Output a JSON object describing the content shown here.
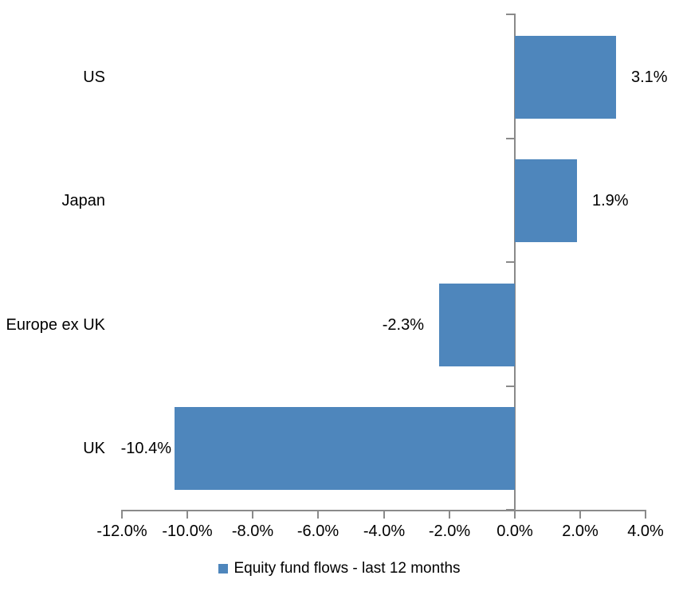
{
  "chart_data": {
    "type": "bar",
    "orientation": "horizontal",
    "title": "",
    "categories": [
      "US",
      "Japan",
      "Europe ex UK",
      "UK"
    ],
    "values": [
      3.1,
      1.9,
      -2.3,
      -10.4
    ],
    "data_labels": [
      "3.1%",
      "1.9%",
      "-2.3%",
      "-10.4%"
    ],
    "series_name": "Equity fund flows - last 12 months",
    "x_axis": {
      "min": -12,
      "max": 4,
      "step": 2,
      "tick_labels": [
        "-12.0%",
        "-10.0%",
        "-8.0%",
        "-6.0%",
        "-4.0%",
        "-2.0%",
        "0.0%",
        "2.0%",
        "4.0%"
      ]
    },
    "legend_position": "bottom",
    "grid": false,
    "colors": {
      "bar": "#4E86BC",
      "axis": "#8A8A8A",
      "text": "#000000"
    }
  }
}
